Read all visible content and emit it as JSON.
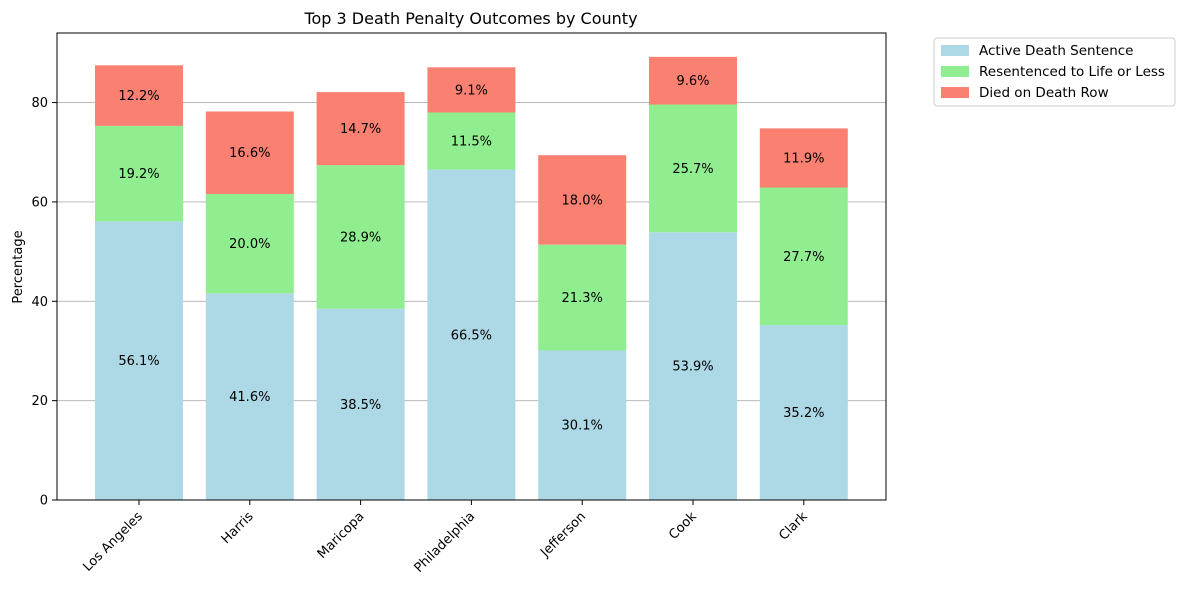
{
  "chart_data": {
    "type": "bar",
    "stacked": true,
    "title": "Top 3 Death Penalty Outcomes by County",
    "xlabel": "",
    "ylabel": "Percentage",
    "ylim": [
      0,
      94
    ],
    "yticks": [
      0,
      20,
      40,
      60,
      80
    ],
    "grid": "y",
    "legend_position": "outside top-right",
    "categories": [
      "Los Angeles",
      "Harris",
      "Maricopa",
      "Philadelphia",
      "Jefferson",
      "Cook",
      "Clark"
    ],
    "series": [
      {
        "name": "Active Death Sentence",
        "color": "#add8e6",
        "values": [
          56.1,
          41.6,
          38.5,
          66.5,
          30.1,
          53.9,
          35.2
        ],
        "labels": [
          "56.1%",
          "41.6%",
          "38.5%",
          "66.5%",
          "30.1%",
          "53.9%",
          "35.2%"
        ]
      },
      {
        "name": "Resentenced to Life or Less",
        "color": "#90ee90",
        "values": [
          19.2,
          20.0,
          28.9,
          11.5,
          21.3,
          25.7,
          27.7
        ],
        "labels": [
          "19.2%",
          "20.0%",
          "28.9%",
          "11.5%",
          "21.3%",
          "25.7%",
          "27.7%"
        ]
      },
      {
        "name": "Died on Death Row",
        "color": "#fa8072",
        "values": [
          12.2,
          16.6,
          14.7,
          9.1,
          18.0,
          9.6,
          11.9
        ],
        "labels": [
          "12.2%",
          "16.6%",
          "14.7%",
          "9.1%",
          "18.0%",
          "9.6%",
          "11.9%"
        ]
      }
    ]
  }
}
